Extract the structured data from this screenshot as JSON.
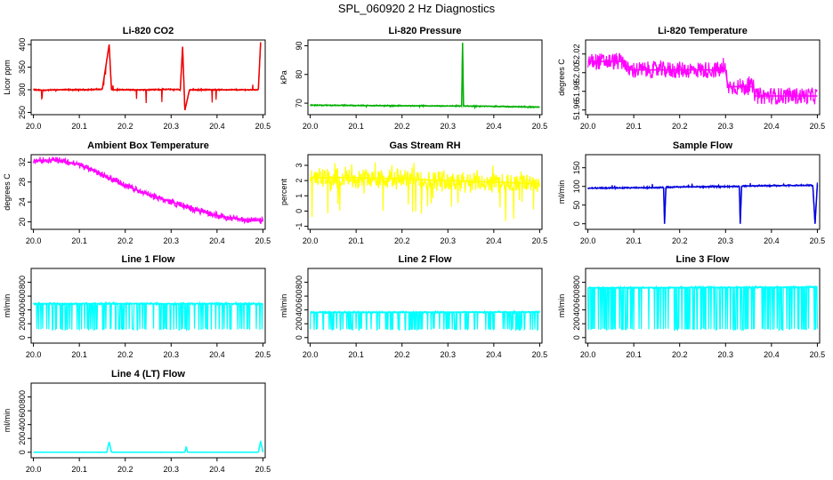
{
  "figure": {
    "title": "SPL_060920  2 Hz Diagnostics"
  },
  "chart_data": [
    {
      "type": "line",
      "title": "Li-820 CO2",
      "ylabel": "Licor ppm",
      "color": "#ee0000",
      "x_ticks": [
        "20.0",
        "20.1",
        "20.2",
        "20.3",
        "20.4",
        "20.5"
      ],
      "y_ticks": [
        "250",
        "300",
        "350",
        "400"
      ],
      "ylim": [
        245,
        410
      ],
      "xlim": [
        19.995,
        20.505
      ],
      "x": [
        20.0,
        20.02,
        20.05,
        20.1,
        20.15,
        20.165,
        20.17,
        20.2,
        20.25,
        20.3,
        20.32,
        20.325,
        20.33,
        20.34,
        20.36,
        20.4,
        20.43,
        20.46,
        20.49,
        20.495
      ],
      "values": [
        300,
        299,
        300,
        300,
        301,
        400,
        300,
        300,
        300,
        301,
        300,
        395,
        255,
        300,
        300,
        300,
        300,
        300,
        300,
        405
      ],
      "band": 3,
      "noise": 1,
      "spike_freq": 0.03,
      "spike_range": [
        -30,
        15
      ]
    },
    {
      "type": "line",
      "title": "Li-820 Pressure",
      "ylabel": "kPa",
      "color": "#00b000",
      "x_ticks": [
        "20.0",
        "20.1",
        "20.2",
        "20.3",
        "20.4",
        "20.5"
      ],
      "y_ticks": [
        "70",
        "80",
        "90"
      ],
      "ylim": [
        66,
        92
      ],
      "xlim": [
        19.995,
        20.505
      ],
      "x": [
        20.0,
        20.1,
        20.2,
        20.3,
        20.33,
        20.332,
        20.334,
        20.4,
        20.5
      ],
      "values": [
        69.3,
        69.2,
        69.1,
        69.0,
        69.0,
        91,
        69.0,
        68.9,
        68.6
      ],
      "band": 0.4,
      "noise": 0.15,
      "spike_freq": 0.005,
      "spike_range": [
        -1,
        1
      ]
    },
    {
      "type": "line",
      "title": "Li-820 Temperature",
      "ylabel": "degrees C",
      "color": "#ff00ff",
      "x_ticks": [
        "20.0",
        "20.1",
        "20.2",
        "20.3",
        "20.4",
        "20.5"
      ],
      "y_ticks": [
        "51.96",
        "51.98",
        "52.00",
        "52.02"
      ],
      "ylim": [
        51.955,
        52.035
      ],
      "xlim": [
        19.995,
        20.505
      ],
      "x": [
        20.0,
        20.08,
        20.085,
        20.3,
        20.305,
        20.36,
        20.365,
        20.5
      ],
      "values": [
        52.012,
        52.012,
        52.003,
        52.003,
        51.985,
        51.985,
        51.975,
        51.975
      ],
      "band": 0.018,
      "noise": 0,
      "spike_freq": 0.03,
      "spike_range": [
        -0.01,
        0.014
      ]
    },
    {
      "type": "line",
      "title": "Ambient Box Temperature",
      "ylabel": "degrees C",
      "color": "#ff00ff",
      "x_ticks": [
        "20.0",
        "20.1",
        "20.2",
        "20.3",
        "20.4",
        "20.5"
      ],
      "y_ticks": [
        "20",
        "24",
        "28",
        "32"
      ],
      "ylim": [
        18.5,
        33.5
      ],
      "xlim": [
        19.995,
        20.505
      ],
      "x": [
        20.0,
        20.05,
        20.1,
        20.15,
        20.2,
        20.25,
        20.3,
        20.35,
        20.4,
        20.45,
        20.5
      ],
      "values": [
        32.3,
        32.5,
        31.5,
        29.5,
        27.3,
        25.5,
        24.0,
        22.5,
        21.3,
        20.5,
        20.2
      ],
      "band": 1.2,
      "noise": 0.4,
      "spike_freq": 0.01,
      "spike_range": [
        -1,
        1
      ]
    },
    {
      "type": "line",
      "title": "Gas Stream RH",
      "ylabel": "percent",
      "color": "#ffff00",
      "x_ticks": [
        "20.0",
        "20.1",
        "20.2",
        "20.3",
        "20.4",
        "20.5"
      ],
      "y_ticks": [
        "-1",
        "0",
        "1",
        "2",
        "3"
      ],
      "ylim": [
        -1.2,
        3.7
      ],
      "xlim": [
        19.995,
        20.505
      ],
      "x": [
        20.0,
        20.1,
        20.2,
        20.3,
        20.4,
        20.5
      ],
      "values": [
        2.2,
        2.2,
        2.1,
        2.0,
        1.9,
        1.8
      ],
      "band": 1.2,
      "noise": 0.4,
      "spike_freq": 0.12,
      "spike_range": [
        -2.6,
        1.2
      ]
    },
    {
      "type": "line",
      "title": "Sample Flow",
      "ylabel": "ml/min",
      "color": "#0000dd",
      "x_ticks": [
        "20.0",
        "20.1",
        "20.2",
        "20.3",
        "20.4",
        "20.5"
      ],
      "y_ticks": [
        "0",
        "50",
        "100",
        "150"
      ],
      "ylim": [
        -15,
        185
      ],
      "xlim": [
        19.995,
        20.505
      ],
      "x": [
        20.0,
        20.165,
        20.167,
        20.17,
        20.33,
        20.332,
        20.335,
        20.49,
        20.495,
        20.5
      ],
      "values": [
        95,
        97,
        0,
        98,
        100,
        0,
        101,
        103,
        0,
        105
      ],
      "band": 4,
      "noise": 1.5,
      "spike_freq": 0.02,
      "spike_range": [
        -4,
        10
      ]
    },
    {
      "type": "line",
      "title": "Line 1 Flow",
      "ylabel": "ml/min",
      "color": "#00ffff",
      "x_ticks": [
        "20.0",
        "20.1",
        "20.2",
        "20.3",
        "20.4",
        "20.5"
      ],
      "y_ticks": [
        "0",
        "200",
        "400",
        "600",
        "800"
      ],
      "ylim": [
        -80,
        1000
      ],
      "xlim": [
        19.995,
        20.505
      ],
      "x": [
        20.0,
        20.5
      ],
      "values": [
        490,
        490
      ],
      "band": 30,
      "noise": 5,
      "drop_low": 120,
      "drop_freq": 0.22,
      "spike_freq": 0,
      "spike_range": [
        0,
        0
      ]
    },
    {
      "type": "line",
      "title": "Line 2 Flow",
      "ylabel": "ml/min",
      "color": "#00ffff",
      "x_ticks": [
        "20.0",
        "20.1",
        "20.2",
        "20.3",
        "20.4",
        "20.5"
      ],
      "y_ticks": [
        "0",
        "200",
        "400",
        "600",
        "800"
      ],
      "ylim": [
        -80,
        1000
      ],
      "xlim": [
        19.995,
        20.505
      ],
      "x": [
        20.0,
        20.5
      ],
      "values": [
        365,
        370
      ],
      "band": 25,
      "noise": 5,
      "drop_low": 120,
      "drop_freq": 0.22,
      "spike_freq": 0,
      "spike_range": [
        0,
        0
      ]
    },
    {
      "type": "line",
      "title": "Line 3 Flow",
      "ylabel": "ml/min",
      "color": "#00ffff",
      "x_ticks": [
        "20.0",
        "20.1",
        "20.2",
        "20.3",
        "20.4",
        "20.5"
      ],
      "y_ticks": [
        "0",
        "200",
        "400",
        "600",
        "800"
      ],
      "ylim": [
        -80,
        1000
      ],
      "xlim": [
        19.995,
        20.505
      ],
      "x": [
        20.0,
        20.5
      ],
      "values": [
        720,
        730
      ],
      "band": 25,
      "noise": 5,
      "drop_low": 120,
      "drop_freq": 0.22,
      "spike_freq": 0,
      "spike_range": [
        0,
        0
      ]
    },
    {
      "type": "line",
      "title": "Line 4 (LT) Flow",
      "ylabel": "ml/min",
      "color": "#00ffff",
      "x_ticks": [
        "20.0",
        "20.1",
        "20.2",
        "20.3",
        "20.4",
        "20.5"
      ],
      "y_ticks": [
        "0",
        "200",
        "400",
        "600",
        "800"
      ],
      "ylim": [
        -80,
        1000
      ],
      "xlim": [
        19.995,
        20.505
      ],
      "x": [
        20.0,
        20.16,
        20.165,
        20.17,
        20.33,
        20.333,
        20.336,
        20.49,
        20.495,
        20.5
      ],
      "values": [
        0,
        0,
        150,
        0,
        0,
        80,
        0,
        0,
        160,
        0
      ],
      "band": 6,
      "noise": 2,
      "spike_freq": 0,
      "spike_range": [
        0,
        0
      ]
    }
  ]
}
